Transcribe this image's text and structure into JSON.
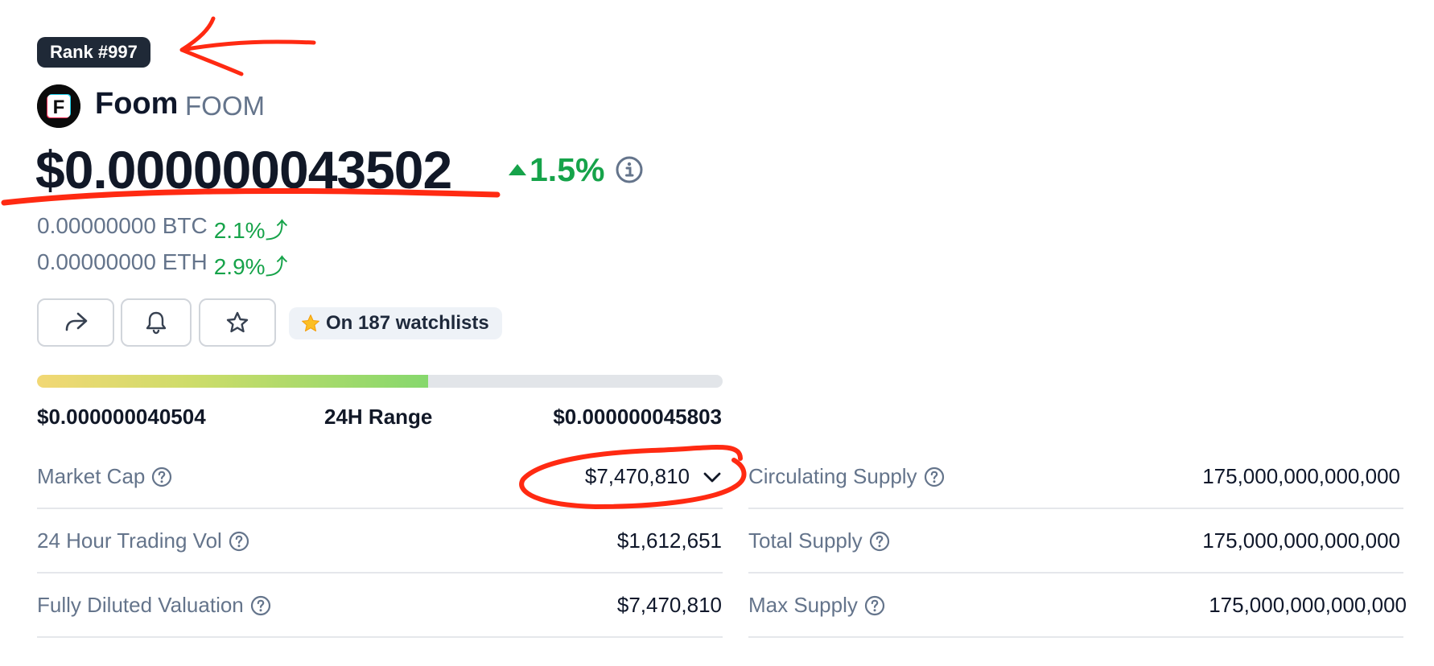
{
  "rank": {
    "label": "Rank #997"
  },
  "coin": {
    "name": "Foom",
    "symbol": "FOOM",
    "logo_letter": "F"
  },
  "price": {
    "usd": "$0.000000043502",
    "change_24h": "1.5%"
  },
  "conversions": [
    {
      "value": "0.00000000 BTC",
      "change": "2.1%"
    },
    {
      "value": "0.00000000 ETH",
      "change": "2.9%"
    }
  ],
  "actions": {
    "share_icon": "share-icon",
    "alert_icon": "bell-icon",
    "watchlist_icon": "star-icon"
  },
  "watchlists": {
    "label": "On 187 watchlists"
  },
  "range_24h": {
    "title": "24H Range",
    "low": "$0.000000040504",
    "high": "$0.000000045803",
    "position": 0.57
  },
  "stats_left": [
    {
      "label": "Market Cap",
      "value": "$7,470,810",
      "dropdown": true
    },
    {
      "label": "24 Hour Trading Vol",
      "value": "$1,612,651"
    },
    {
      "label": "Fully Diluted Valuation",
      "value": "$7,470,810"
    }
  ],
  "stats_right": [
    {
      "label": "Circulating Supply",
      "value": "175,000,000,000,000"
    },
    {
      "label": "Total Supply",
      "value": "175,000,000,000,000"
    },
    {
      "label": "Max Supply",
      "value": "175,000,000,000,000"
    }
  ],
  "colors": {
    "positive": "#16a34a",
    "annotation_red": "#ff2a12",
    "badge_bg": "#1f2937"
  }
}
